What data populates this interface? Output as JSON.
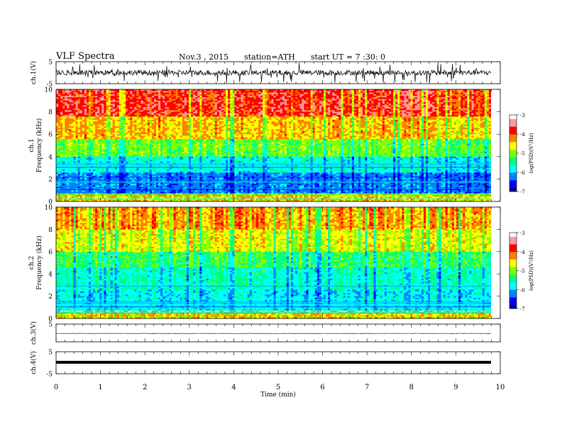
{
  "header": {
    "title": "VLF  Spectra",
    "date": "Nov.3  , 2015",
    "station": "station=ATH",
    "start": "start  UT  =   7 :30: 0"
  },
  "chart_data": [
    {
      "type": "line",
      "panel": "ch1-waveform",
      "ylabel": "ch.1(V)",
      "ylim": [
        -5,
        5
      ],
      "yticks": [
        "5",
        "-5"
      ],
      "xlim": [
        0,
        10
      ],
      "note_levels": {
        "mean": 0,
        "typical_amplitude": 1.2,
        "peak": 4.8
      }
    },
    {
      "type": "heatmap",
      "panel": "ch1-spectrogram",
      "ylabel": "ch.1\nFrequency  (kHz)",
      "ylim": [
        0,
        10
      ],
      "yticks": [
        "0",
        "2",
        "4",
        "6",
        "8",
        "10"
      ],
      "xlim": [
        0,
        9.8
      ],
      "colorbar": {
        "label": "log(PSD)(V²/Hz)",
        "range": [
          -7,
          -3
        ],
        "ticks": [
          "-3",
          "-4",
          "-5",
          "-6",
          "-7"
        ]
      }
    },
    {
      "type": "heatmap",
      "panel": "ch2-spectrogram",
      "ylabel": "ch.2\nFrequency  (kHz)",
      "ylim": [
        0,
        10
      ],
      "yticks": [
        "0",
        "2",
        "4",
        "6",
        "8",
        "10"
      ],
      "xlim": [
        0,
        9.8
      ],
      "colorbar": {
        "label": "log(PSD)(V²/Hz)",
        "range": [
          -7,
          -3
        ],
        "ticks": [
          "-3",
          "-4",
          "-5",
          "-6",
          "-7"
        ]
      }
    },
    {
      "type": "line",
      "panel": "ch3-waveform",
      "ylabel": "ch.3(V)",
      "ylim": [
        -5,
        5
      ],
      "yticks": [
        "5"
      ],
      "levels": {
        "mean": -0.3
      }
    },
    {
      "type": "line",
      "panel": "ch4-waveform",
      "ylabel": "ch.4(V)",
      "ylim": [
        -5,
        5
      ],
      "yticks": [
        "5",
        "-5"
      ],
      "levels": {
        "mean": 0.2
      }
    }
  ],
  "xaxis": {
    "label": "Time  (min)",
    "ticks": [
      "0",
      "1",
      "2",
      "3",
      "4",
      "5",
      "6",
      "7",
      "8",
      "9",
      "10"
    ],
    "range": [
      0,
      10
    ]
  },
  "colormap": [
    "#000080",
    "#0000ff",
    "#0080ff",
    "#00ffff",
    "#00ff80",
    "#80ff00",
    "#ffff00",
    "#ff8000",
    "#ff0000",
    "#ff9999",
    "#ffffff"
  ]
}
